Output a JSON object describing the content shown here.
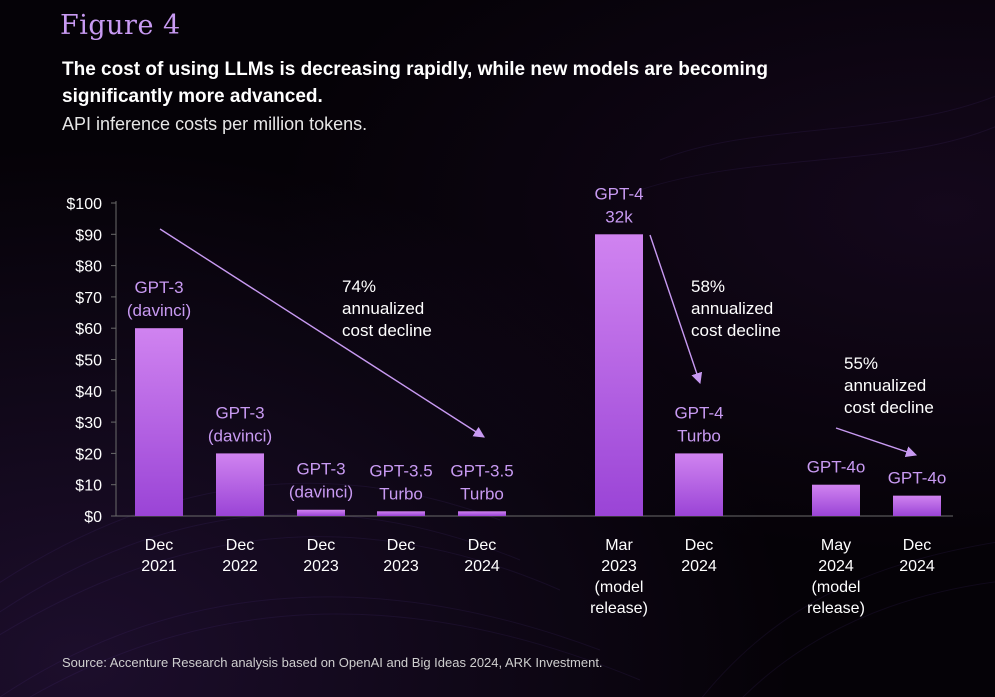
{
  "figure": {
    "label": "Figure 4"
  },
  "headline": "The cost of using LLMs is decreasing rapidly, while new models are becoming significantly more advanced.",
  "subtitle": "API inference costs per million tokens.",
  "source": "Source: Accenture Research analysis based on OpenAI and Big Ideas 2024, ARK Investment.",
  "colors": {
    "background": "#050207",
    "bar_top": "#d083f0",
    "bar_bottom": "#9a44d6",
    "accent": "#c89af2",
    "text": "#ffffff",
    "grid": "#6a6a6a"
  },
  "chart_data": {
    "type": "bar",
    "title": "API inference costs per million tokens.",
    "xlabel": "",
    "ylabel": "",
    "ylim": [
      0,
      100
    ],
    "y_ticks": [
      "$0",
      "$10",
      "$20",
      "$30",
      "$40",
      "$50",
      "$60",
      "$70",
      "$80",
      "$90",
      "$100"
    ],
    "grid": false,
    "bars": [
      {
        "model": [
          "GPT-3",
          "(davinci)"
        ],
        "date": [
          "Dec",
          "2021"
        ],
        "value": 60,
        "group": 1
      },
      {
        "model": [
          "GPT-3",
          "(davinci)"
        ],
        "date": [
          "Dec",
          "2022"
        ],
        "value": 20,
        "group": 1
      },
      {
        "model": [
          "GPT-3",
          "(davinci)"
        ],
        "date": [
          "Dec",
          "2023"
        ],
        "value": 2,
        "group": 1
      },
      {
        "model": [
          "GPT-3.5",
          "Turbo"
        ],
        "date": [
          "Dec",
          "2023"
        ],
        "value": 1.5,
        "group": 1
      },
      {
        "model": [
          "GPT-3.5",
          "Turbo"
        ],
        "date": [
          "Dec",
          "2024"
        ],
        "value": 1.5,
        "group": 1
      },
      {
        "model": [
          "GPT-4",
          "32k"
        ],
        "date": [
          "Mar",
          "2023",
          "(model",
          "release)"
        ],
        "value": 90,
        "group": 2
      },
      {
        "model": [
          "GPT-4",
          "Turbo"
        ],
        "date": [
          "Dec",
          "2024"
        ],
        "value": 20,
        "group": 2
      },
      {
        "model": [
          "GPT-4o"
        ],
        "date": [
          "May",
          "2024",
          "(model",
          "release)"
        ],
        "value": 10,
        "group": 3
      },
      {
        "model": [
          "GPT-4o"
        ],
        "date": [
          "Dec",
          "2024"
        ],
        "value": 6.5,
        "group": 3
      }
    ],
    "annotations": [
      {
        "lines": [
          "74%",
          "annualized",
          "cost decline"
        ],
        "from_bar": 0,
        "to_bar": 4
      },
      {
        "lines": [
          "58%",
          "annualized",
          "cost decline"
        ],
        "from_bar": 5,
        "to_bar": 6
      },
      {
        "lines": [
          "55%",
          "annualized",
          "cost decline"
        ],
        "from_bar": 7,
        "to_bar": 8
      }
    ]
  }
}
